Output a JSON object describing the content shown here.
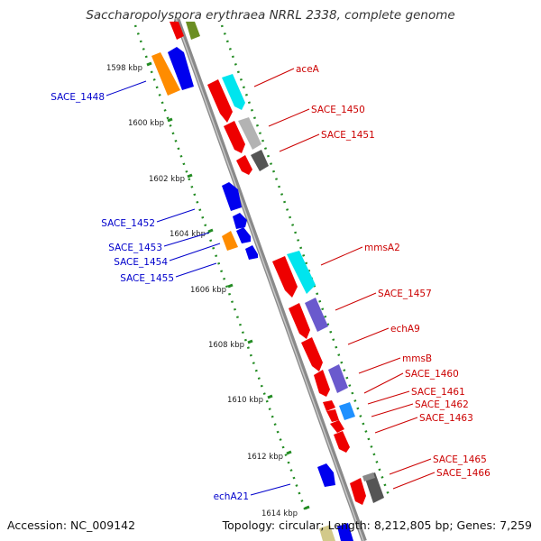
{
  "title": "Saccharopolyspora erythraea NRRL 2338, complete genome",
  "footer": {
    "accession": "Accession: NC_009142",
    "summary": "Topology: circular; Length: 8,212,805 bp; Genes: 7,259"
  },
  "colors": {
    "backbone": "#8a8a8a",
    "ticks": "#228b22",
    "left_label": "#0000cc",
    "right_label": "#cc0000",
    "kbp_label": "#222222"
  },
  "scale": {
    "ticks": [
      {
        "label": "1598 kbp",
        "kbp": 1598
      },
      {
        "label": "1600 kbp",
        "kbp": 1600
      },
      {
        "label": "1602 kbp",
        "kbp": 1602
      },
      {
        "label": "1604 kbp",
        "kbp": 1604
      },
      {
        "label": "1606 kbp",
        "kbp": 1606
      },
      {
        "label": "1608 kbp",
        "kbp": 1608
      },
      {
        "label": "1610 kbp",
        "kbp": 1610
      },
      {
        "label": "1612 kbp",
        "kbp": 1612
      },
      {
        "label": "1614 kbp",
        "kbp": 1614
      }
    ]
  },
  "genes": {
    "left": [
      {
        "label": "SACE_1448",
        "color": "#0000ee"
      },
      {
        "label": "SACE_1452",
        "color": "#0000ee"
      },
      {
        "label": "SACE_1453",
        "color": "#0000ee"
      },
      {
        "label": "SACE_1454",
        "color": "#0000ee"
      },
      {
        "label": "SACE_1455",
        "color": "#0000ee"
      },
      {
        "label": "echA21",
        "color": "#0000ee"
      }
    ],
    "right": [
      {
        "label": "aceA",
        "color": "#ee0000"
      },
      {
        "label": "SACE_1450",
        "color": "#ee0000"
      },
      {
        "label": "SACE_1451",
        "color": "#ee0000"
      },
      {
        "label": "mmsA2",
        "color": "#ee0000"
      },
      {
        "label": "SACE_1457",
        "color": "#ee0000"
      },
      {
        "label": "echA9",
        "color": "#ee0000"
      },
      {
        "label": "mmsB",
        "color": "#ee0000"
      },
      {
        "label": "SACE_1460",
        "color": "#ee0000"
      },
      {
        "label": "SACE_1461",
        "color": "#ee0000"
      },
      {
        "label": "SACE_1462",
        "color": "#ee0000"
      },
      {
        "label": "SACE_1463",
        "color": "#ee0000"
      },
      {
        "label": "SACE_1465",
        "color": "#ee0000"
      },
      {
        "label": "SACE_1466",
        "color": "#ee0000"
      }
    ]
  },
  "cog_colors": {
    "blue": "#0000ee",
    "orange": "#ff8c00",
    "cyan": "#00e5ee",
    "gray": "#b3b3b3",
    "dark_gray": "#555555",
    "purple": "#6a5acd",
    "light_blue": "#1e90ff",
    "olive": "#6b8e23",
    "khaki": "#d2c98a"
  }
}
